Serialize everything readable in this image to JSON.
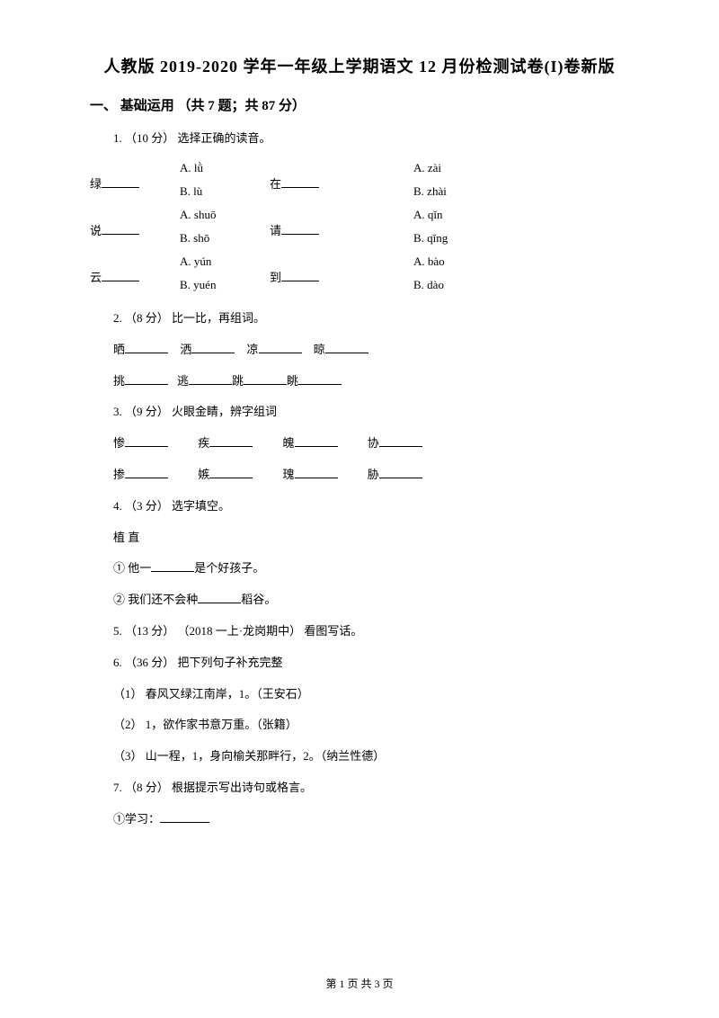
{
  "title": "人教版 2019-2020 学年一年级上学期语文 12 月份检测试卷(I)卷新版",
  "section1": {
    "header": "一、 基础运用 （共 7 题；共 87 分）"
  },
  "q1": {
    "intro": "1. （10 分） 选择正确的读音。",
    "items": [
      {
        "char": "绿",
        "a": "A. lǜ",
        "b": "B. lù",
        "char2": "在",
        "a2": "A. zài",
        "b2": "B. zhài"
      },
      {
        "char": "说",
        "a": "A. shuō",
        "b": "B. shō",
        "char2": "请",
        "a2": "A. qǐn",
        "b2": "B. qǐng"
      },
      {
        "char": "云",
        "a": "A. yún",
        "b": "B. yuén",
        "char2": "到",
        "a2": "A. bào",
        "b2": "B. dào"
      }
    ]
  },
  "q2": {
    "intro": "2. （8 分） 比一比，再组词。",
    "line1": [
      "晒",
      "洒",
      "凉",
      "晾"
    ],
    "line2": [
      "挑",
      "逃",
      "跳",
      "眺"
    ]
  },
  "q3": {
    "intro": "3. （9 分） 火眼金睛，辨字组词",
    "line1": [
      "惨",
      "疾",
      "魄",
      "协"
    ],
    "line2": [
      "掺",
      "嫉",
      "瑰",
      "胁"
    ]
  },
  "q4": {
    "intro": "4. （3 分） 选字填空。",
    "chars": "植    直",
    "item1_pre": "①  他一",
    "item1_post": "是个好孩子。",
    "item2_pre": "②  我们还不会种",
    "item2_post": "稻谷。"
  },
  "q5": {
    "intro": "5. （13 分） （2018 一上·龙岗期中） 看图写话。"
  },
  "q6": {
    "intro": "6. （36 分） 把下列句子补充完整",
    "s1": "（1）  春风又绿江南岸，1。（王安石）",
    "s2": "（2）  1，欲作家书意万重。（张籍）",
    "s3": "（3）  山一程，1，身向榆关那畔行，2。（纳兰性德）"
  },
  "q7": {
    "intro": "7. （8 分） 根据提示写出诗句或格言。",
    "s1": "①学习："
  },
  "footer": "第 1 页 共 3 页"
}
